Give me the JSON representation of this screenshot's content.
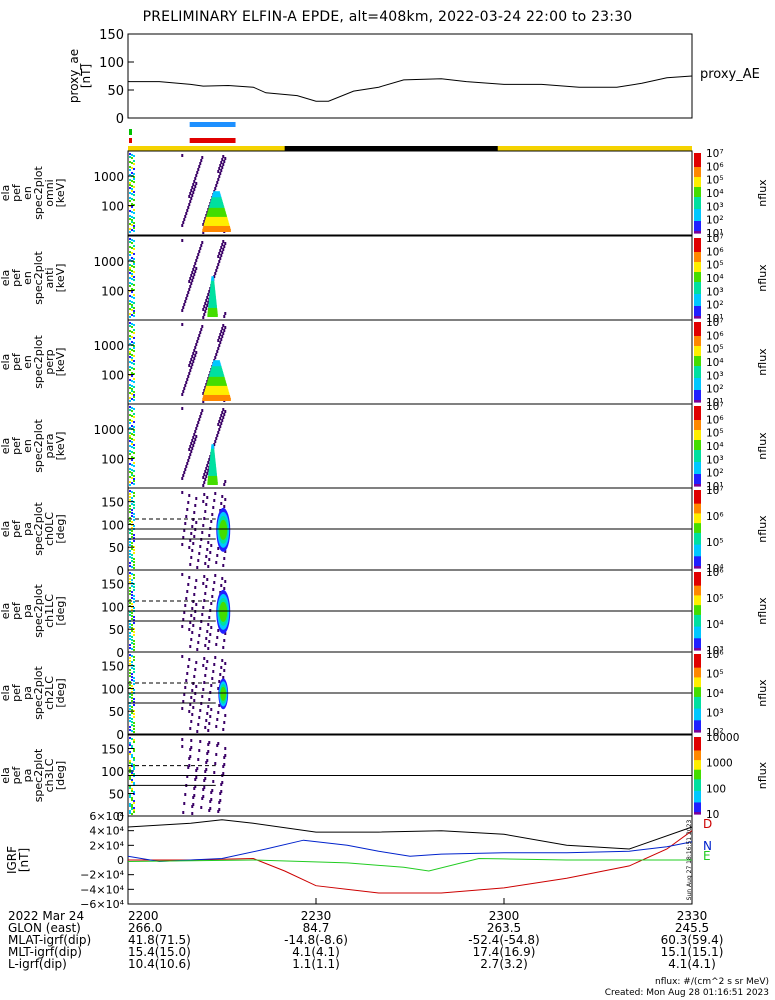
{
  "title": "PRELIMINARY ELFIN-A EPDE, alt=408km, 2022-03-24 22:00 to 23:30",
  "colors": {
    "text": "#000000",
    "panel": "#000000",
    "sunlight": "#f5d300",
    "shadow": "#000000",
    "marker_blue": "#1e90ff",
    "marker_red": "#e00000",
    "marker_green": "#00c000"
  },
  "chart_data": {
    "type": "line",
    "ae_panel": {
      "ylabel_lines": [
        "proxy_ae",
        "[nT]"
      ],
      "ytick_labels": [
        "150",
        "100",
        "50",
        "0"
      ],
      "ylim": [
        0,
        150
      ],
      "legend": "proxy_AE",
      "x_minutes": [
        0,
        5,
        10,
        12,
        16,
        20,
        22,
        27,
        30,
        32,
        36,
        40,
        44,
        50,
        54,
        60,
        66,
        72,
        78,
        82,
        86,
        90
      ],
      "values": [
        65,
        65,
        60,
        57,
        58,
        55,
        45,
        40,
        30,
        30,
        48,
        55,
        68,
        70,
        65,
        60,
        60,
        55,
        55,
        62,
        72,
        75
      ]
    },
    "spectrogram_panels": [
      {
        "ylabel_lines": [
          "ela",
          "pef",
          "en",
          "spec2plot",
          "omni",
          "[keV]"
        ],
        "ytick_labels": [
          "1000",
          "100"
        ],
        "cbar_ticks": [
          "10⁷",
          "10⁶",
          "10⁵",
          "10⁴",
          "10³",
          "10²",
          "10¹"
        ],
        "cbar_label": "nflux"
      },
      {
        "ylabel_lines": [
          "ela",
          "pef",
          "en",
          "spec2plot",
          "anti",
          "[keV]"
        ],
        "ytick_labels": [
          "1000",
          "100"
        ],
        "cbar_ticks": [
          "10⁷",
          "10⁶",
          "10⁵",
          "10⁴",
          "10³",
          "10²",
          "10¹"
        ],
        "cbar_label": "nflux"
      },
      {
        "ylabel_lines": [
          "ela",
          "pef",
          "en",
          "spec2plot",
          "perp",
          "[keV]"
        ],
        "ytick_labels": [
          "1000",
          "100"
        ],
        "cbar_ticks": [
          "10⁷",
          "10⁶",
          "10⁵",
          "10⁴",
          "10³",
          "10²",
          "10¹"
        ],
        "cbar_label": "nflux"
      },
      {
        "ylabel_lines": [
          "ela",
          "pef",
          "en",
          "spec2plot",
          "para",
          "[keV]"
        ],
        "ytick_labels": [
          "1000",
          "100"
        ],
        "cbar_ticks": [
          "10⁷",
          "10⁶",
          "10⁵",
          "10⁴",
          "10³",
          "10²",
          "10¹"
        ],
        "cbar_label": "nflux"
      },
      {
        "ylabel_lines": [
          "ela",
          "pef",
          "pa",
          "spec2plot",
          "ch0LC",
          "[deg]"
        ],
        "ytick_labels": [
          "150",
          "100",
          "50",
          "0"
        ],
        "cbar_ticks": [
          "10⁷",
          "10⁶",
          "10⁵",
          "10⁴"
        ],
        "cbar_label": "nflux"
      },
      {
        "ylabel_lines": [
          "ela",
          "pef",
          "pa",
          "spec2plot",
          "ch1LC",
          "[deg]"
        ],
        "ytick_labels": [
          "150",
          "100",
          "50",
          "0"
        ],
        "cbar_ticks": [
          "10⁶",
          "10⁵",
          "10⁴",
          "10³"
        ],
        "cbar_label": "nflux"
      },
      {
        "ylabel_lines": [
          "ela",
          "pef",
          "pa",
          "spec2plot",
          "ch2LC",
          "[deg]"
        ],
        "ytick_labels": [
          "150",
          "100",
          "50",
          "0"
        ],
        "cbar_ticks": [
          "10⁶",
          "10⁵",
          "10⁴",
          "10³",
          "10²"
        ],
        "cbar_label": "nflux"
      },
      {
        "ylabel_lines": [
          "ela",
          "pef",
          "pa",
          "spec2plot",
          "ch3LC",
          "[deg]"
        ],
        "ytick_labels": [
          "150",
          "100",
          "50",
          "0"
        ],
        "cbar_ticks": [
          "10000",
          "1000",
          "100",
          "10"
        ],
        "cbar_label": "nflux"
      }
    ],
    "igrf_panel": {
      "ylabel_lines": [
        "IGRF",
        "[nT]"
      ],
      "ytick_labels": [
        "6×10⁴",
        "4×10⁴",
        "2×10⁴",
        "0",
        "−2×10⁴",
        "−4×10⁴",
        "−6×10⁴"
      ],
      "ylim": [
        -60000,
        60000
      ],
      "side_stamp": "Sun Aug 27 18:16:51 2023",
      "series": [
        {
          "name": "D",
          "color": "#cc0000",
          "x_minutes": [
            0,
            10,
            20,
            25,
            30,
            40,
            50,
            60,
            70,
            80,
            86,
            90
          ],
          "values": [
            0,
            0,
            2000,
            -15000,
            -35000,
            -45000,
            -45000,
            -38000,
            -25000,
            -8000,
            15000,
            40000
          ]
        },
        {
          "name": "N",
          "color": "#0022cc",
          "x_minutes": [
            0,
            5,
            15,
            22,
            28,
            35,
            40,
            45,
            50,
            60,
            70,
            80,
            86,
            90
          ],
          "values": [
            5000,
            -2000,
            2000,
            15000,
            27000,
            20000,
            12000,
            5000,
            8000,
            10000,
            10000,
            12000,
            18000,
            25000
          ]
        },
        {
          "name": "E",
          "color": "#22cc22",
          "x_minutes": [
            0,
            20,
            35,
            44,
            48,
            56,
            60,
            70,
            80,
            90
          ],
          "values": [
            -2000,
            0,
            -4000,
            -10000,
            -15000,
            2000,
            1500,
            0,
            0,
            0
          ]
        },
        {
          "name": "",
          "color": "#000000",
          "x_minutes": [
            0,
            10,
            15,
            20,
            30,
            40,
            50,
            60,
            70,
            80,
            90
          ],
          "values": [
            45000,
            50000,
            55000,
            50000,
            38000,
            38000,
            40000,
            35000,
            20000,
            15000,
            45000
          ]
        }
      ]
    },
    "x_tick_minutes": [
      0,
      30,
      60,
      90
    ],
    "x_tick_labels": [
      "2200",
      "2230",
      "2300",
      "2330"
    ],
    "xlim_minutes": [
      0,
      90
    ],
    "eclipse_minutes": [
      25,
      59
    ],
    "marker_minutes": {
      "blue": [
        10,
        17
      ],
      "red": [
        10,
        17
      ],
      "green": [
        0,
        0
      ]
    }
  },
  "footer": {
    "rows": [
      {
        "label": "2022 Mar 24",
        "values": [
          "2200",
          "2230",
          "2300",
          "2330"
        ]
      },
      {
        "label": "GLON (east)",
        "values": [
          "266.0",
          "84.7",
          "263.5",
          "245.5"
        ]
      },
      {
        "label": "MLAT-igrf(dip)",
        "values": [
          "41.8(71.5)",
          "-14.8(-8.6)",
          "-52.4(-54.8)",
          "60.3(59.4)"
        ]
      },
      {
        "label": "MLT-igrf(dip)",
        "values": [
          "15.4(15.0)",
          "4.1(4.1)",
          "17.4(16.9)",
          "15.1(15.1)"
        ]
      },
      {
        "label": "L-igrf(dip)",
        "values": [
          "10.4(10.6)",
          "1.1(1.1)",
          "2.7(3.2)",
          "4.1(4.1)"
        ]
      }
    ],
    "units_note": "nflux: #/(cm^2 s sr MeV)",
    "created": "Created: Mon Aug 28 01:16:51 2023"
  }
}
